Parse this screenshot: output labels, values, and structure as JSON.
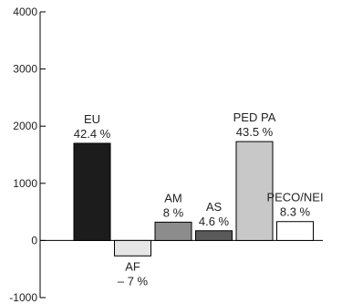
{
  "chart_data": {
    "type": "bar",
    "title": "",
    "xlabel": "",
    "ylabel": "",
    "ylim": [
      -1000,
      4000
    ],
    "yticks": [
      -1000,
      0,
      1000,
      2000,
      3000,
      4000
    ],
    "ytick_labels": [
      "-1000",
      "0",
      "1000",
      "2000",
      "3000",
      "4000"
    ],
    "grid": false,
    "legend": "none",
    "categories": [
      "EU",
      "AF",
      "AM",
      "AS",
      "PED PA",
      "PECO/NEI"
    ],
    "values": [
      1700,
      -270,
      320,
      170,
      1730,
      330
    ],
    "percent_labels": [
      "42.4 %",
      "– 7 %",
      "8 %",
      "4.6 %",
      "43.5 %",
      "8.3 %"
    ],
    "bar_colors": [
      "#1c1c1c",
      "#e6e6e6",
      "#8c8c8c",
      "#5a5a5a",
      "#c8c8c8",
      "#ffffff"
    ]
  }
}
